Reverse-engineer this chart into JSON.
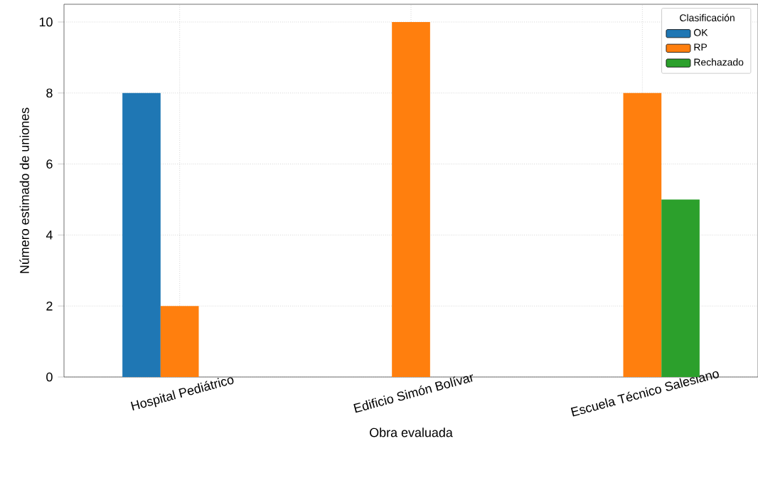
{
  "chart_data": {
    "type": "bar",
    "xlabel": "Obra evaluada",
    "ylabel": "Número estimado de uniones",
    "legend_title": "Clasificación",
    "categories": [
      "Hospital Pediátrico",
      "Edificio Simón Bolívar",
      "Escuela Técnico Salesiano"
    ],
    "series": [
      {
        "name": "OK",
        "color": "#1f77b4",
        "values": [
          8,
          null,
          null
        ]
      },
      {
        "name": "RP",
        "color": "#ff7f0e",
        "values": [
          2,
          10,
          8
        ]
      },
      {
        "name": "Rechazado",
        "color": "#2ca02c",
        "values": [
          null,
          null,
          5
        ]
      }
    ],
    "ylim": [
      0,
      10.5
    ],
    "yticks": [
      0,
      2,
      4,
      6,
      8,
      10
    ],
    "grid": true,
    "legend": "top right"
  }
}
